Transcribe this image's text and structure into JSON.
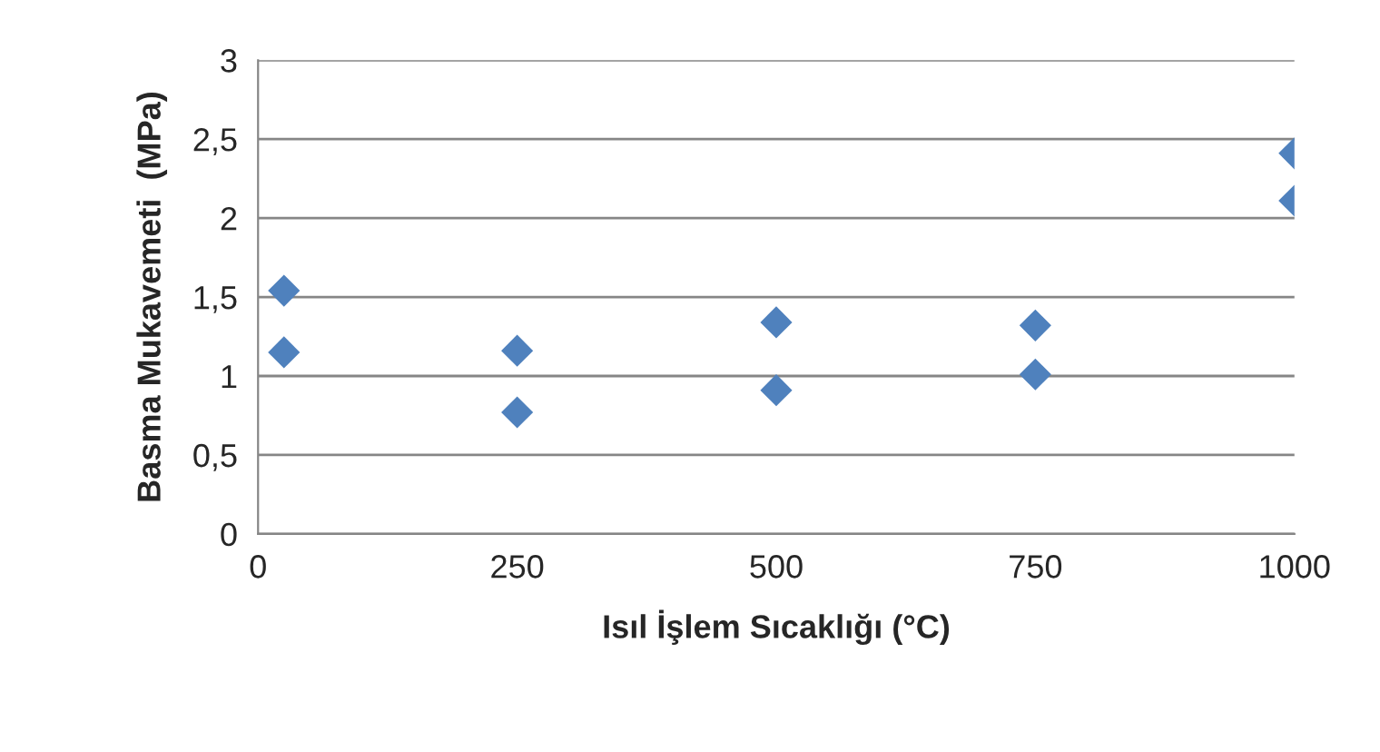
{
  "chart_data": {
    "type": "scatter",
    "xlabel": "Isıl İşlem Sıcaklığı (°C)",
    "ylabel": "Basma Mukavemeti  (MPa)",
    "x": [
      25,
      25,
      250,
      250,
      500,
      500,
      750,
      750,
      1000,
      1000
    ],
    "series": [
      {
        "color": "#4f81bd",
        "values": [
          1.54,
          1.15,
          1.16,
          0.77,
          1.34,
          0.91,
          1.32,
          1.01,
          2.41,
          2.11
        ]
      }
    ],
    "xlim": [
      0,
      1000
    ],
    "xticks": [
      0,
      250,
      500,
      750,
      1000
    ],
    "ylim": [
      0,
      3
    ],
    "yticks": [
      0,
      {
        "value": 0.5,
        "label": "0,5"
      },
      1,
      {
        "value": 1.5,
        "label": "1,5"
      },
      2,
      {
        "value": 2.5,
        "label": "2,5"
      },
      3
    ],
    "grid": "y",
    "marker": "diamond",
    "legend": false
  }
}
